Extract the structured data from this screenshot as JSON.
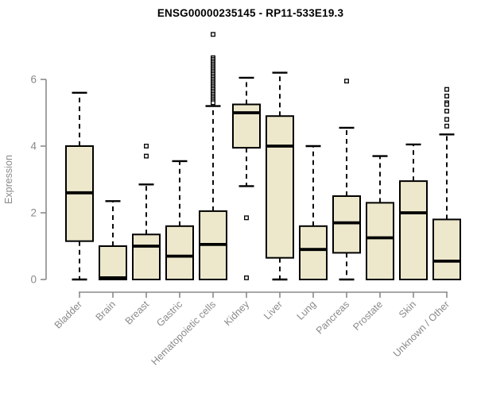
{
  "chart_data": {
    "type": "boxplot",
    "title": "ENSG00000235145 - RP11-533E19.3",
    "ylabel": "Expression",
    "yticks": [
      0,
      2,
      4,
      6
    ],
    "ylim": [
      0,
      7.5
    ],
    "grid": false,
    "legend": "none",
    "categories": [
      "Bladder",
      "Brain",
      "Breast",
      "Gastric",
      "Hematopoietic cells",
      "Kidney",
      "Liver",
      "Lung",
      "Pancreas",
      "Prostate",
      "Skin",
      "Unknown / Other"
    ],
    "series": [
      {
        "category": "Bladder",
        "low": 0,
        "q1": 1.15,
        "median": 2.6,
        "q3": 4.0,
        "high": 5.6,
        "outliers": []
      },
      {
        "category": "Brain",
        "low": 0,
        "q1": 0,
        "median": 0.05,
        "q3": 1.0,
        "high": 2.35,
        "outliers": []
      },
      {
        "category": "Breast",
        "low": 0,
        "q1": 0,
        "median": 1.0,
        "q3": 1.35,
        "high": 2.85,
        "outliers": [
          4.0,
          3.7
        ]
      },
      {
        "category": "Gastric",
        "low": 0,
        "q1": 0,
        "median": 0.7,
        "q3": 1.6,
        "high": 3.55,
        "outliers": []
      },
      {
        "category": "Hematopoietic cells",
        "low": 0,
        "q1": 0,
        "median": 1.05,
        "q3": 2.05,
        "high": 5.2,
        "outliers": [
          7.35,
          6.65,
          6.6,
          6.55,
          6.5,
          6.45,
          6.4,
          6.35,
          6.3,
          6.25,
          6.2,
          6.15,
          6.1,
          6.05,
          6.0,
          5.95,
          5.9,
          5.85,
          5.8,
          5.75,
          5.7,
          5.65,
          5.6,
          5.55,
          5.5,
          5.45,
          5.4,
          5.35,
          5.3
        ]
      },
      {
        "category": "Kidney",
        "low": 2.8,
        "q1": 3.95,
        "median": 5.0,
        "q3": 5.25,
        "high": 6.05,
        "outliers": [
          1.85,
          0.05
        ]
      },
      {
        "category": "Liver",
        "low": 0,
        "q1": 0.65,
        "median": 4.0,
        "q3": 4.9,
        "high": 6.2,
        "outliers": []
      },
      {
        "category": "Lung",
        "low": 0,
        "q1": 0,
        "median": 0.9,
        "q3": 1.6,
        "high": 4.0,
        "outliers": []
      },
      {
        "category": "Pancreas",
        "low": 0,
        "q1": 0.8,
        "median": 1.7,
        "q3": 2.5,
        "high": 4.55,
        "outliers": [
          5.95
        ]
      },
      {
        "category": "Prostate",
        "low": 0,
        "q1": 0,
        "median": 1.25,
        "q3": 2.3,
        "high": 3.7,
        "outliers": []
      },
      {
        "category": "Skin",
        "low": 0,
        "q1": 0,
        "median": 2.0,
        "q3": 2.95,
        "high": 4.05,
        "outliers": []
      },
      {
        "category": "Unknown / Other",
        "low": 0,
        "q1": 0,
        "median": 0.55,
        "q3": 1.8,
        "high": 4.35,
        "outliers": [
          5.7,
          5.5,
          5.3,
          5.25,
          5.05,
          4.8,
          4.6
        ]
      }
    ],
    "colors": {
      "box_fill": "#EDE8CC",
      "box_stroke": "#000000",
      "median_color": "#000000",
      "whisker_color": "#000000",
      "outlier_fill": "#FFFFFF",
      "axis_color": "#8A8A8A",
      "title_color": "#000000"
    }
  }
}
